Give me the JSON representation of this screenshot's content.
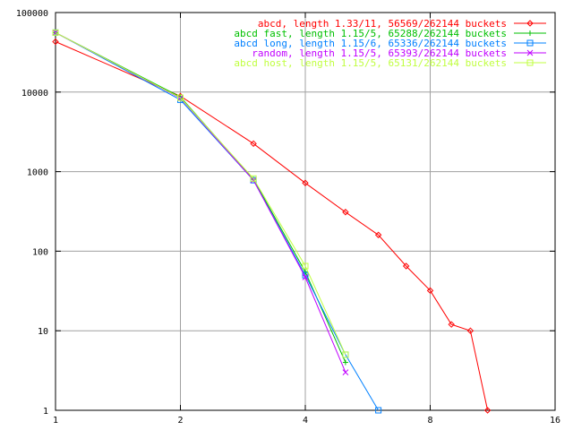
{
  "chart_data": {
    "type": "line",
    "title": "",
    "xlabel": "",
    "ylabel": "",
    "x_scale": "log2",
    "y_scale": "log10",
    "xlim": [
      1,
      16
    ],
    "ylim": [
      1,
      100000
    ],
    "x_ticks": [
      1,
      2,
      4,
      8,
      16
    ],
    "x_tick_labels": [
      "1",
      "2",
      "4",
      "8",
      "16"
    ],
    "y_ticks": [
      1,
      10,
      100,
      1000,
      10000,
      100000
    ],
    "y_tick_labels": [
      "1",
      "10",
      "100",
      "1000",
      "10000",
      "100000"
    ],
    "grid": true,
    "legend_position": "top-right",
    "series": [
      {
        "name": "abcd, length 1.33/11, 56569/262144 buckets",
        "color": "#ff0000",
        "marker": "diamond",
        "x": [
          1,
          2,
          3,
          4,
          5,
          6,
          7,
          8,
          9,
          10,
          11
        ],
        "y": [
          43000,
          8900,
          2250,
          720,
          310,
          160,
          65,
          32,
          12,
          10,
          1
        ]
      },
      {
        "name": "abcd fast, length 1.15/5, 65288/262144 buckets",
        "color": "#00c000",
        "marker": "plus",
        "x": [
          1,
          2,
          3,
          4,
          5
        ],
        "y": [
          56000,
          8700,
          800,
          55,
          4
        ]
      },
      {
        "name": "abcd long, length 1.15/6, 65336/262144 buckets",
        "color": "#0080ff",
        "marker": "square",
        "x": [
          1,
          2,
          3,
          4,
          5,
          6
        ],
        "y": [
          56000,
          8000,
          780,
          50,
          5,
          1
        ]
      },
      {
        "name": "random, length 1.15/5, 65393/262144 buckets",
        "color": "#c000ff",
        "marker": "x",
        "x": [
          1,
          2,
          3,
          4,
          5
        ],
        "y": [
          56000,
          8400,
          780,
          47,
          3
        ]
      },
      {
        "name": "abcd host, length 1.15/5, 65131/262144 buckets",
        "color": "#c0ff40",
        "marker": "square",
        "x": [
          1,
          2,
          3,
          4,
          5
        ],
        "y": [
          56000,
          8500,
          820,
          65,
          5
        ]
      }
    ]
  }
}
